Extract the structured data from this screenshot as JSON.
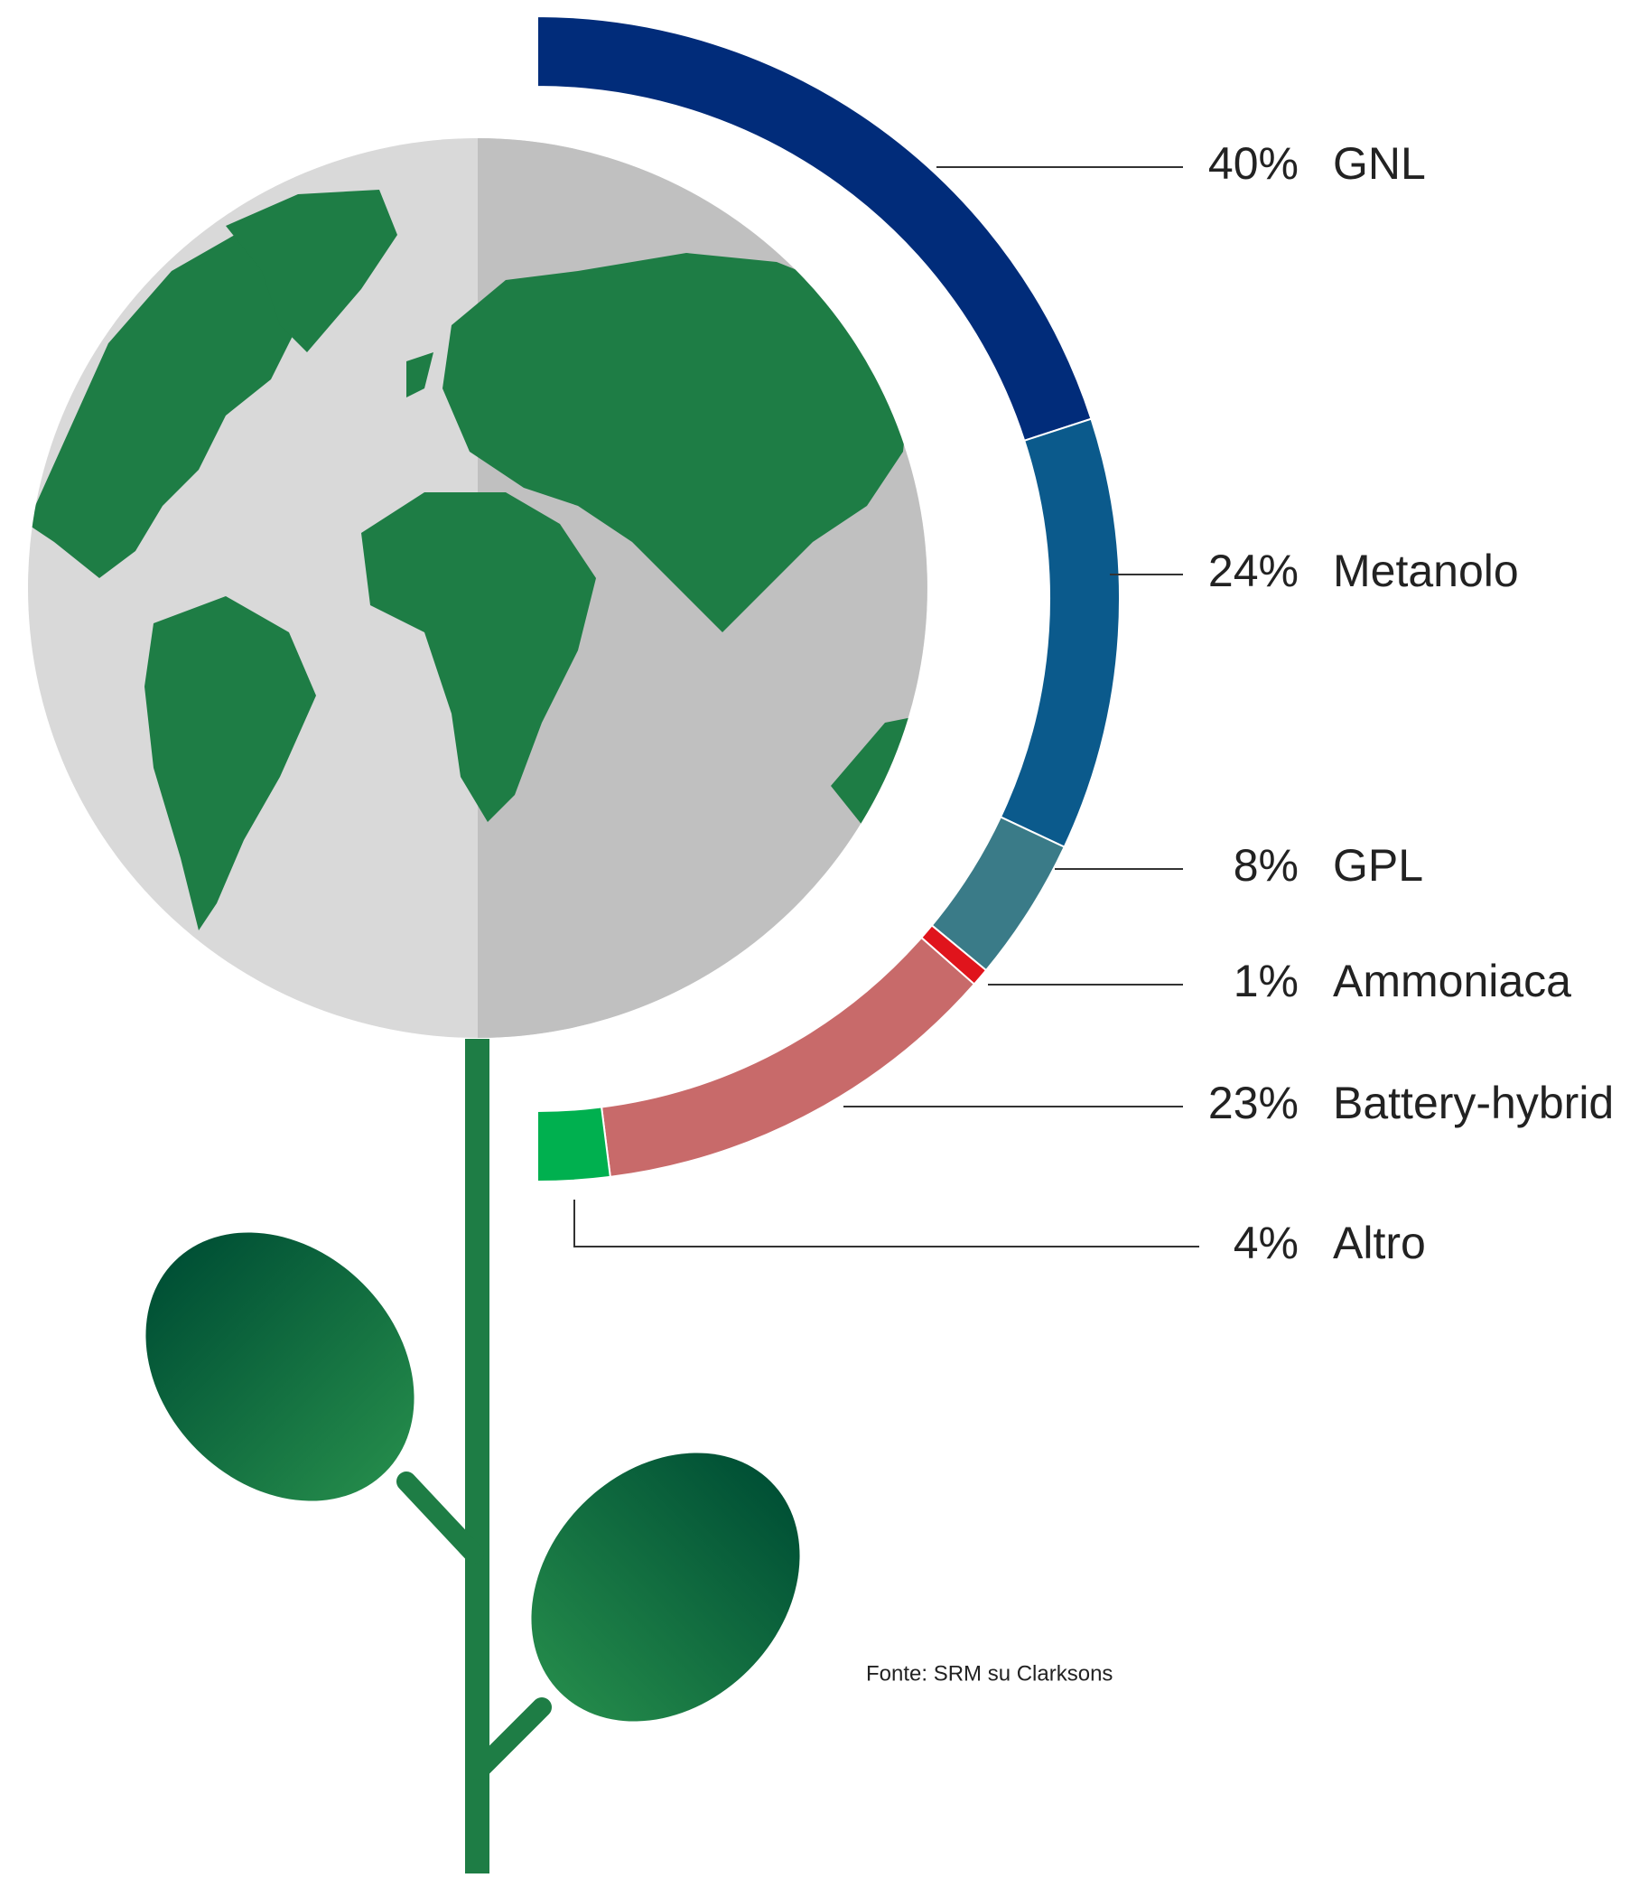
{
  "chart_data": {
    "type": "pie",
    "categories": [
      "GNL",
      "Metanolo",
      "GPL",
      "Ammoniaca",
      "Battery-hybrid",
      "Altro"
    ],
    "values": [
      40,
      24,
      8,
      1,
      23,
      4
    ],
    "value_labels": [
      "40%",
      "24%",
      "8%",
      "1%",
      "23%",
      "4%"
    ],
    "colors": [
      "#012c7a",
      "#0b5a8c",
      "#3a7b88",
      "#e0141c",
      "#c86a6a",
      "#00b04f"
    ],
    "source": "Fonte: SRM su Clarksons"
  }
}
